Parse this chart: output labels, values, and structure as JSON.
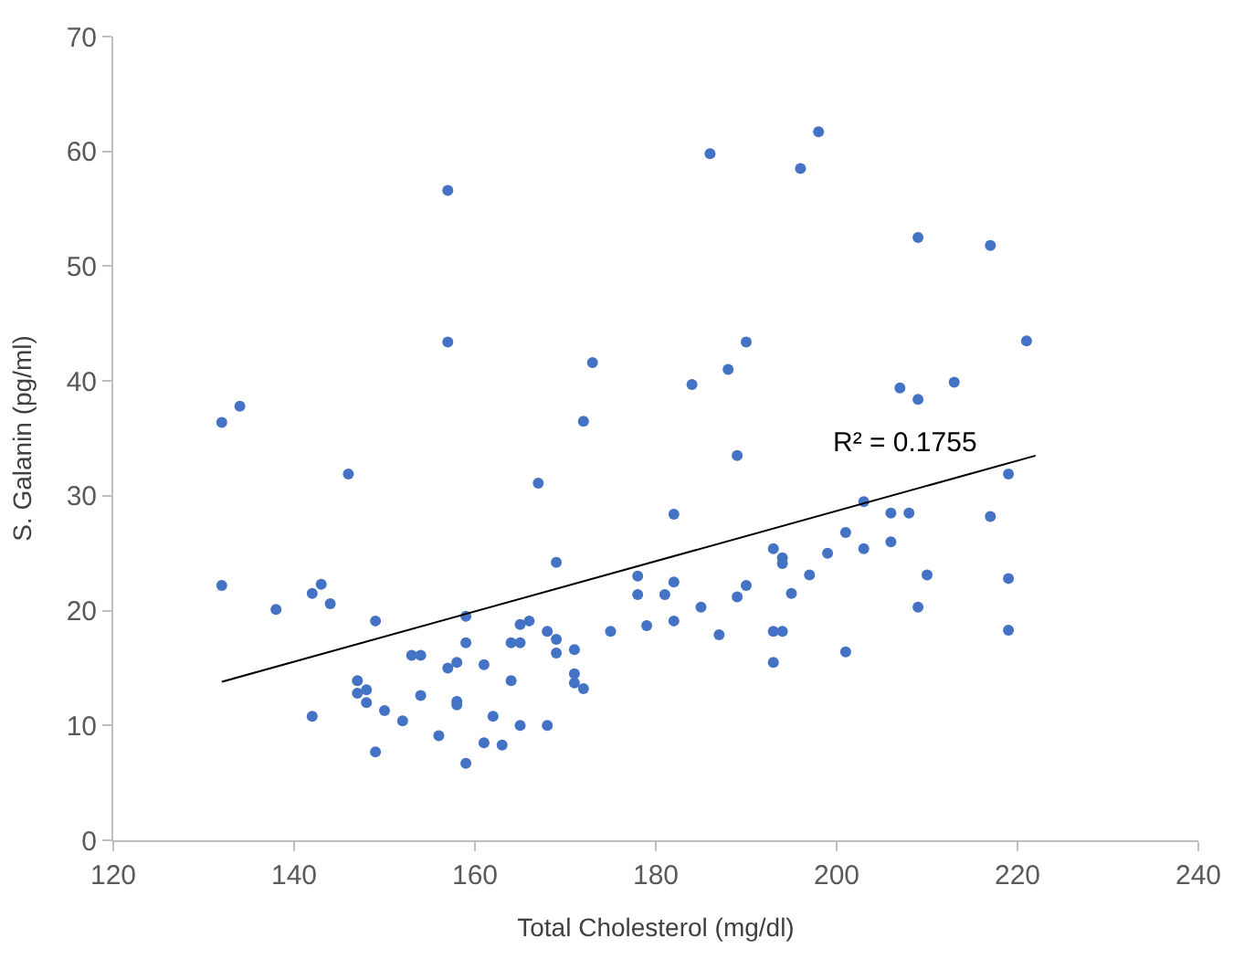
{
  "chart_data": {
    "type": "scatter",
    "xlabel": "Total Cholesterol (mg/dl)",
    "ylabel": "S. Galanin (pg/ml)",
    "xlim": [
      120,
      240
    ],
    "ylim": [
      0,
      70
    ],
    "xticks": [
      120,
      140,
      160,
      180,
      200,
      220,
      240
    ],
    "yticks": [
      0,
      10,
      20,
      30,
      40,
      50,
      60,
      70
    ],
    "grid": false,
    "legend": false,
    "marker": "circle",
    "series": [
      {
        "color": "#4472c4",
        "x": [
          132,
          134,
          132,
          138,
          142,
          142,
          143,
          144,
          146,
          147,
          147,
          148,
          148,
          149,
          149,
          150,
          152,
          153,
          154,
          154,
          156,
          157,
          157,
          157,
          158,
          158,
          158,
          159,
          159,
          159,
          161,
          161,
          162,
          163,
          164,
          164,
          165,
          165,
          165,
          166,
          167,
          168,
          168,
          169,
          169,
          169,
          171,
          171,
          171,
          172,
          172,
          173,
          175,
          178,
          178,
          179,
          181,
          182,
          182,
          182,
          184,
          185,
          186,
          187,
          188,
          189,
          189,
          190,
          190,
          193,
          193,
          193,
          194,
          194,
          194,
          195,
          196,
          197,
          198,
          199,
          201,
          201,
          203,
          203,
          206,
          206,
          207,
          208,
          209,
          209,
          209,
          210,
          213,
          217,
          217,
          219,
          219,
          219,
          221
        ],
        "values": [
          36.4,
          37.8,
          22.2,
          20.1,
          10.8,
          21.5,
          22.3,
          20.6,
          31.9,
          13.9,
          12.8,
          13.1,
          12.0,
          19.1,
          7.7,
          11.3,
          10.4,
          16.1,
          16.1,
          12.6,
          9.1,
          15.0,
          43.4,
          56.6,
          15.5,
          11.8,
          12.1,
          19.5,
          17.2,
          6.7,
          15.3,
          8.5,
          10.8,
          8.3,
          13.9,
          17.2,
          18.8,
          17.2,
          10.0,
          19.1,
          31.1,
          18.2,
          10.0,
          24.2,
          17.5,
          16.3,
          16.6,
          14.5,
          13.7,
          13.2,
          36.5,
          41.6,
          18.2,
          23.0,
          21.4,
          18.7,
          21.4,
          22.5,
          28.4,
          19.1,
          39.7,
          20.3,
          59.8,
          17.9,
          41.0,
          33.5,
          21.2,
          22.2,
          43.4,
          15.5,
          18.2,
          25.4,
          24.6,
          24.1,
          18.2,
          21.5,
          58.5,
          23.1,
          61.7,
          25.0,
          26.8,
          16.4,
          25.4,
          29.5,
          28.5,
          26.0,
          39.4,
          28.5,
          20.3,
          52.5,
          38.4,
          23.1,
          39.9,
          51.8,
          28.2,
          22.8,
          18.3,
          31.9,
          43.5
        ]
      },
      {
        "type": "line",
        "color": "#000000",
        "x": [
          132,
          222
        ],
        "values": [
          13.8,
          33.5
        ],
        "marker": "none"
      }
    ],
    "annotations": [
      "R² = 0.1755"
    ]
  }
}
